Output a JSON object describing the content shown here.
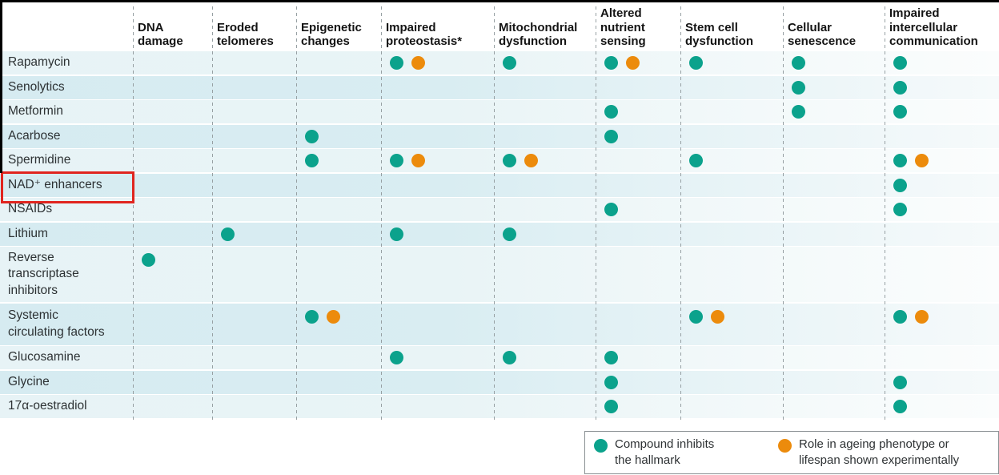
{
  "colors": {
    "inhibit_dot": "#0ba28c",
    "experimental_dot": "#ec8b0c",
    "highlight_box": "#e0251f",
    "row_band_light": "#e8f4f6",
    "row_band_dark": "#d7ecf1"
  },
  "chart_data": {
    "type": "table",
    "title": "",
    "columns": [
      "DNA\ndamage",
      "Eroded\ntelomeres",
      "Epigenetic\nchanges",
      "Impaired\nproteostasis*",
      "Mitochondrial\ndysfunction",
      "Altered\nnutrient\nsensing",
      "Stem cell\ndysfunction",
      "Cellular\nsenescence",
      "Impaired\nintercellular\ncommunication"
    ],
    "rows": [
      {
        "label": "Rapamycin",
        "highlighted": false,
        "cells": [
          "",
          "",
          "",
          "inhibits+experimental",
          "inhibits",
          "inhibits+experimental",
          "inhibits",
          "inhibits",
          "inhibits"
        ]
      },
      {
        "label": "Senolytics",
        "highlighted": false,
        "cells": [
          "",
          "",
          "",
          "",
          "",
          "",
          "",
          "inhibits",
          "inhibits"
        ]
      },
      {
        "label": "Metformin",
        "highlighted": false,
        "cells": [
          "",
          "",
          "",
          "",
          "",
          "inhibits",
          "",
          "inhibits",
          "inhibits"
        ]
      },
      {
        "label": "Acarbose",
        "highlighted": false,
        "cells": [
          "",
          "",
          "inhibits",
          "",
          "",
          "inhibits",
          "",
          "",
          ""
        ]
      },
      {
        "label": "Spermidine",
        "highlighted": false,
        "cells": [
          "",
          "",
          "inhibits",
          "inhibits+experimental",
          "inhibits+experimental",
          "",
          "inhibits",
          "",
          "inhibits+experimental"
        ]
      },
      {
        "label": "NAD⁺ enhancers",
        "highlighted": true,
        "cells": [
          "",
          "",
          "",
          "",
          "",
          "",
          "",
          "",
          "inhibits"
        ]
      },
      {
        "label": "NSAIDs",
        "highlighted": false,
        "cells": [
          "",
          "",
          "",
          "",
          "",
          "inhibits",
          "",
          "",
          "inhibits"
        ]
      },
      {
        "label": "Lithium",
        "highlighted": false,
        "cells": [
          "",
          "inhibits",
          "",
          "inhibits",
          "inhibits",
          "",
          "",
          "",
          ""
        ]
      },
      {
        "label": "Reverse\ntranscriptase\ninhibitors",
        "highlighted": false,
        "cells": [
          "inhibits",
          "",
          "",
          "",
          "",
          "",
          "",
          "",
          ""
        ]
      },
      {
        "label": "Systemic\ncirculating factors",
        "highlighted": false,
        "cells": [
          "",
          "",
          "inhibits+experimental",
          "",
          "",
          "",
          "inhibits+experimental",
          "",
          "inhibits+experimental"
        ]
      },
      {
        "label": "Glucosamine",
        "highlighted": false,
        "cells": [
          "",
          "",
          "",
          "inhibits",
          "inhibits",
          "inhibits",
          "",
          "",
          ""
        ]
      },
      {
        "label": "Glycine",
        "highlighted": false,
        "cells": [
          "",
          "",
          "",
          "",
          "",
          "inhibits",
          "",
          "",
          "inhibits"
        ]
      },
      {
        "label": "17α-oestradiol",
        "highlighted": false,
        "cells": [
          "",
          "",
          "",
          "",
          "",
          "inhibits",
          "",
          "",
          "inhibits"
        ]
      }
    ],
    "legend": {
      "position": "bottom-right",
      "items": [
        {
          "marker": "teal-dot",
          "label": "Compound inhibits\nthe hallmark"
        },
        {
          "marker": "orange-dot",
          "label": "Role in ageing phenotype or\nlifespan shown experimentally"
        }
      ]
    }
  }
}
